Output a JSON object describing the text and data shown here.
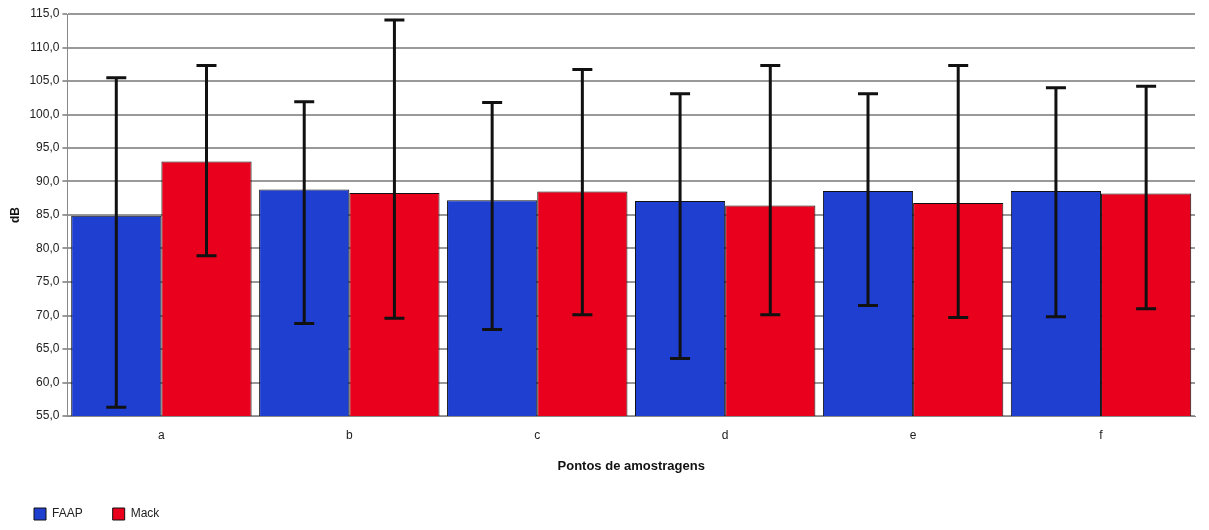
{
  "chart_data": {
    "type": "bar",
    "xlabel": "Pontos de amostragens",
    "ylabel": "dB",
    "categories": [
      "a",
      "b",
      "c",
      "d",
      "e",
      "f"
    ],
    "series": [
      {
        "name": "FAAP",
        "color": "#1f3fd0",
        "values": [
          84.9,
          88.8,
          87.2,
          87.1,
          88.6,
          88.6
        ],
        "errors": [
          [
            56.3,
            105.5
          ],
          [
            68.8,
            101.9
          ],
          [
            67.9,
            101.8
          ],
          [
            63.6,
            103.1
          ],
          [
            71.5,
            103.1
          ],
          [
            69.8,
            104.0
          ]
        ]
      },
      {
        "name": "Mack",
        "color": "#e8001c",
        "values": [
          93.0,
          88.3,
          88.5,
          86.4,
          86.8,
          88.2
        ],
        "errors": [
          [
            78.9,
            107.3
          ],
          [
            69.6,
            114.1
          ],
          [
            70.1,
            106.7
          ],
          [
            70.1,
            107.3
          ],
          [
            69.7,
            107.3
          ],
          [
            71.0,
            104.2
          ]
        ]
      }
    ],
    "ylim": [
      55,
      115
    ],
    "yticks": [
      {
        "value": 55,
        "label": "55,0"
      },
      {
        "value": 60,
        "label": "60,0"
      },
      {
        "value": 65,
        "label": "65,0"
      },
      {
        "value": 70,
        "label": "70,0"
      },
      {
        "value": 75,
        "label": "75,0"
      },
      {
        "value": 80,
        "label": "80,0"
      },
      {
        "value": 85,
        "label": "85,0"
      },
      {
        "value": 90,
        "label": "90,0"
      },
      {
        "value": 95,
        "label": "95,0"
      },
      {
        "value": 100,
        "label": "100,0"
      },
      {
        "value": 105,
        "label": "105,0"
      },
      {
        "value": 110,
        "label": "110,0"
      },
      {
        "value": 115,
        "label": "115,0"
      }
    ],
    "grid": "y",
    "legend": "bottom left"
  }
}
